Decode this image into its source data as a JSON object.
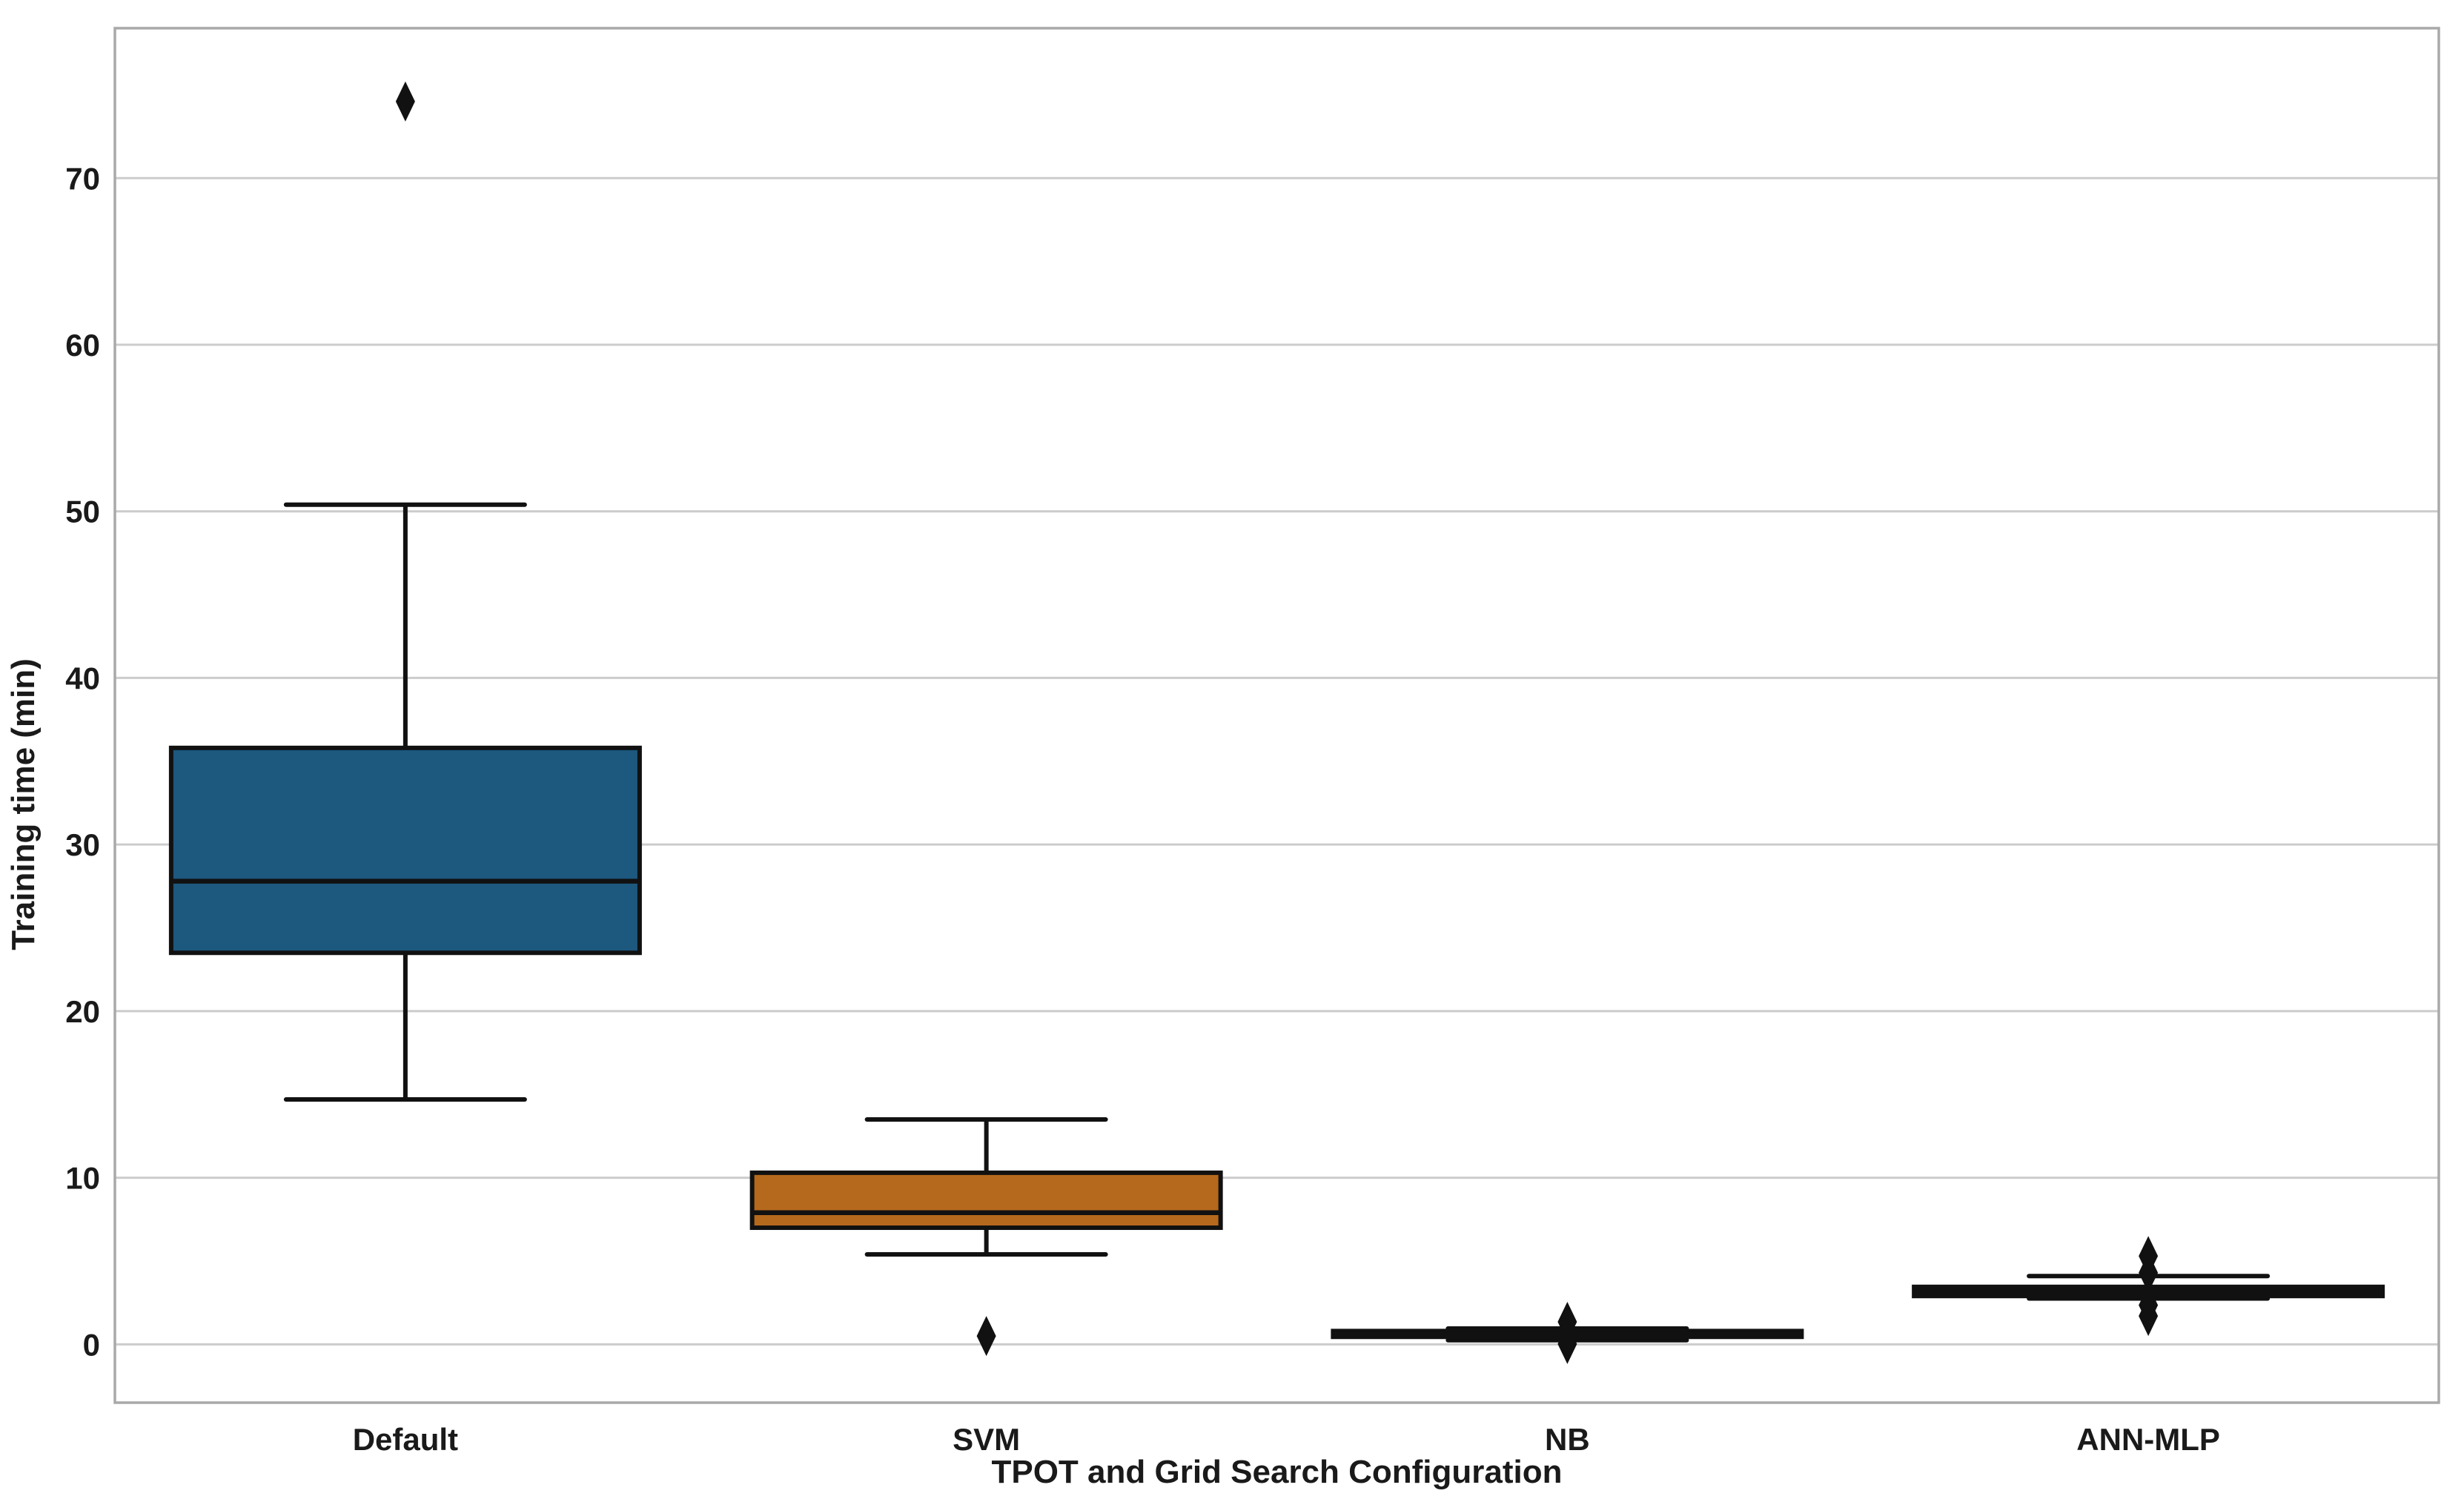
{
  "figure": {
    "background": "#ffffff",
    "plot_border_color": "#a9a9a9",
    "grid_color": "#cccccc",
    "text_color": "#1a1a1a",
    "box_edge_color": "#111111"
  },
  "chart_data": {
    "type": "box",
    "title": "",
    "xlabel": "TPOT and Grid Search Configuration",
    "ylabel": "Training time (min)",
    "categories": [
      "Default",
      "SVM",
      "NB",
      "ANN-MLP"
    ],
    "yticks": [
      0,
      10,
      20,
      30,
      40,
      50,
      60,
      70
    ],
    "ylim": [
      -3.5,
      79.0
    ],
    "grid": "horizontal-only",
    "legend": "none",
    "series": [
      {
        "name": "Default",
        "box_color": "#1d587f",
        "whisker_low": 14.7,
        "q1": 23.5,
        "median": 27.8,
        "q3": 35.8,
        "whisker_high": 50.4,
        "outliers": [
          74.6
        ]
      },
      {
        "name": "SVM",
        "box_color": "#b5691c",
        "whisker_low": 5.4,
        "q1": 7.0,
        "median": 7.9,
        "q3": 10.3,
        "whisker_high": 13.5,
        "outliers": [
          0.5
        ]
      },
      {
        "name": "NB",
        "box_color": "#141414",
        "whisker_low": 0.25,
        "q1": 0.45,
        "median": 0.6,
        "q3": 0.8,
        "whisker_high": 0.95,
        "outliers": [
          0.02,
          1.35
        ]
      },
      {
        "name": "ANN-MLP",
        "box_color": "#141414",
        "whisker_low": 2.75,
        "q1": 2.9,
        "median": 3.15,
        "q3": 3.45,
        "whisker_high": 4.1,
        "outliers": [
          1.7,
          2.35,
          4.3,
          5.3
        ]
      }
    ]
  }
}
